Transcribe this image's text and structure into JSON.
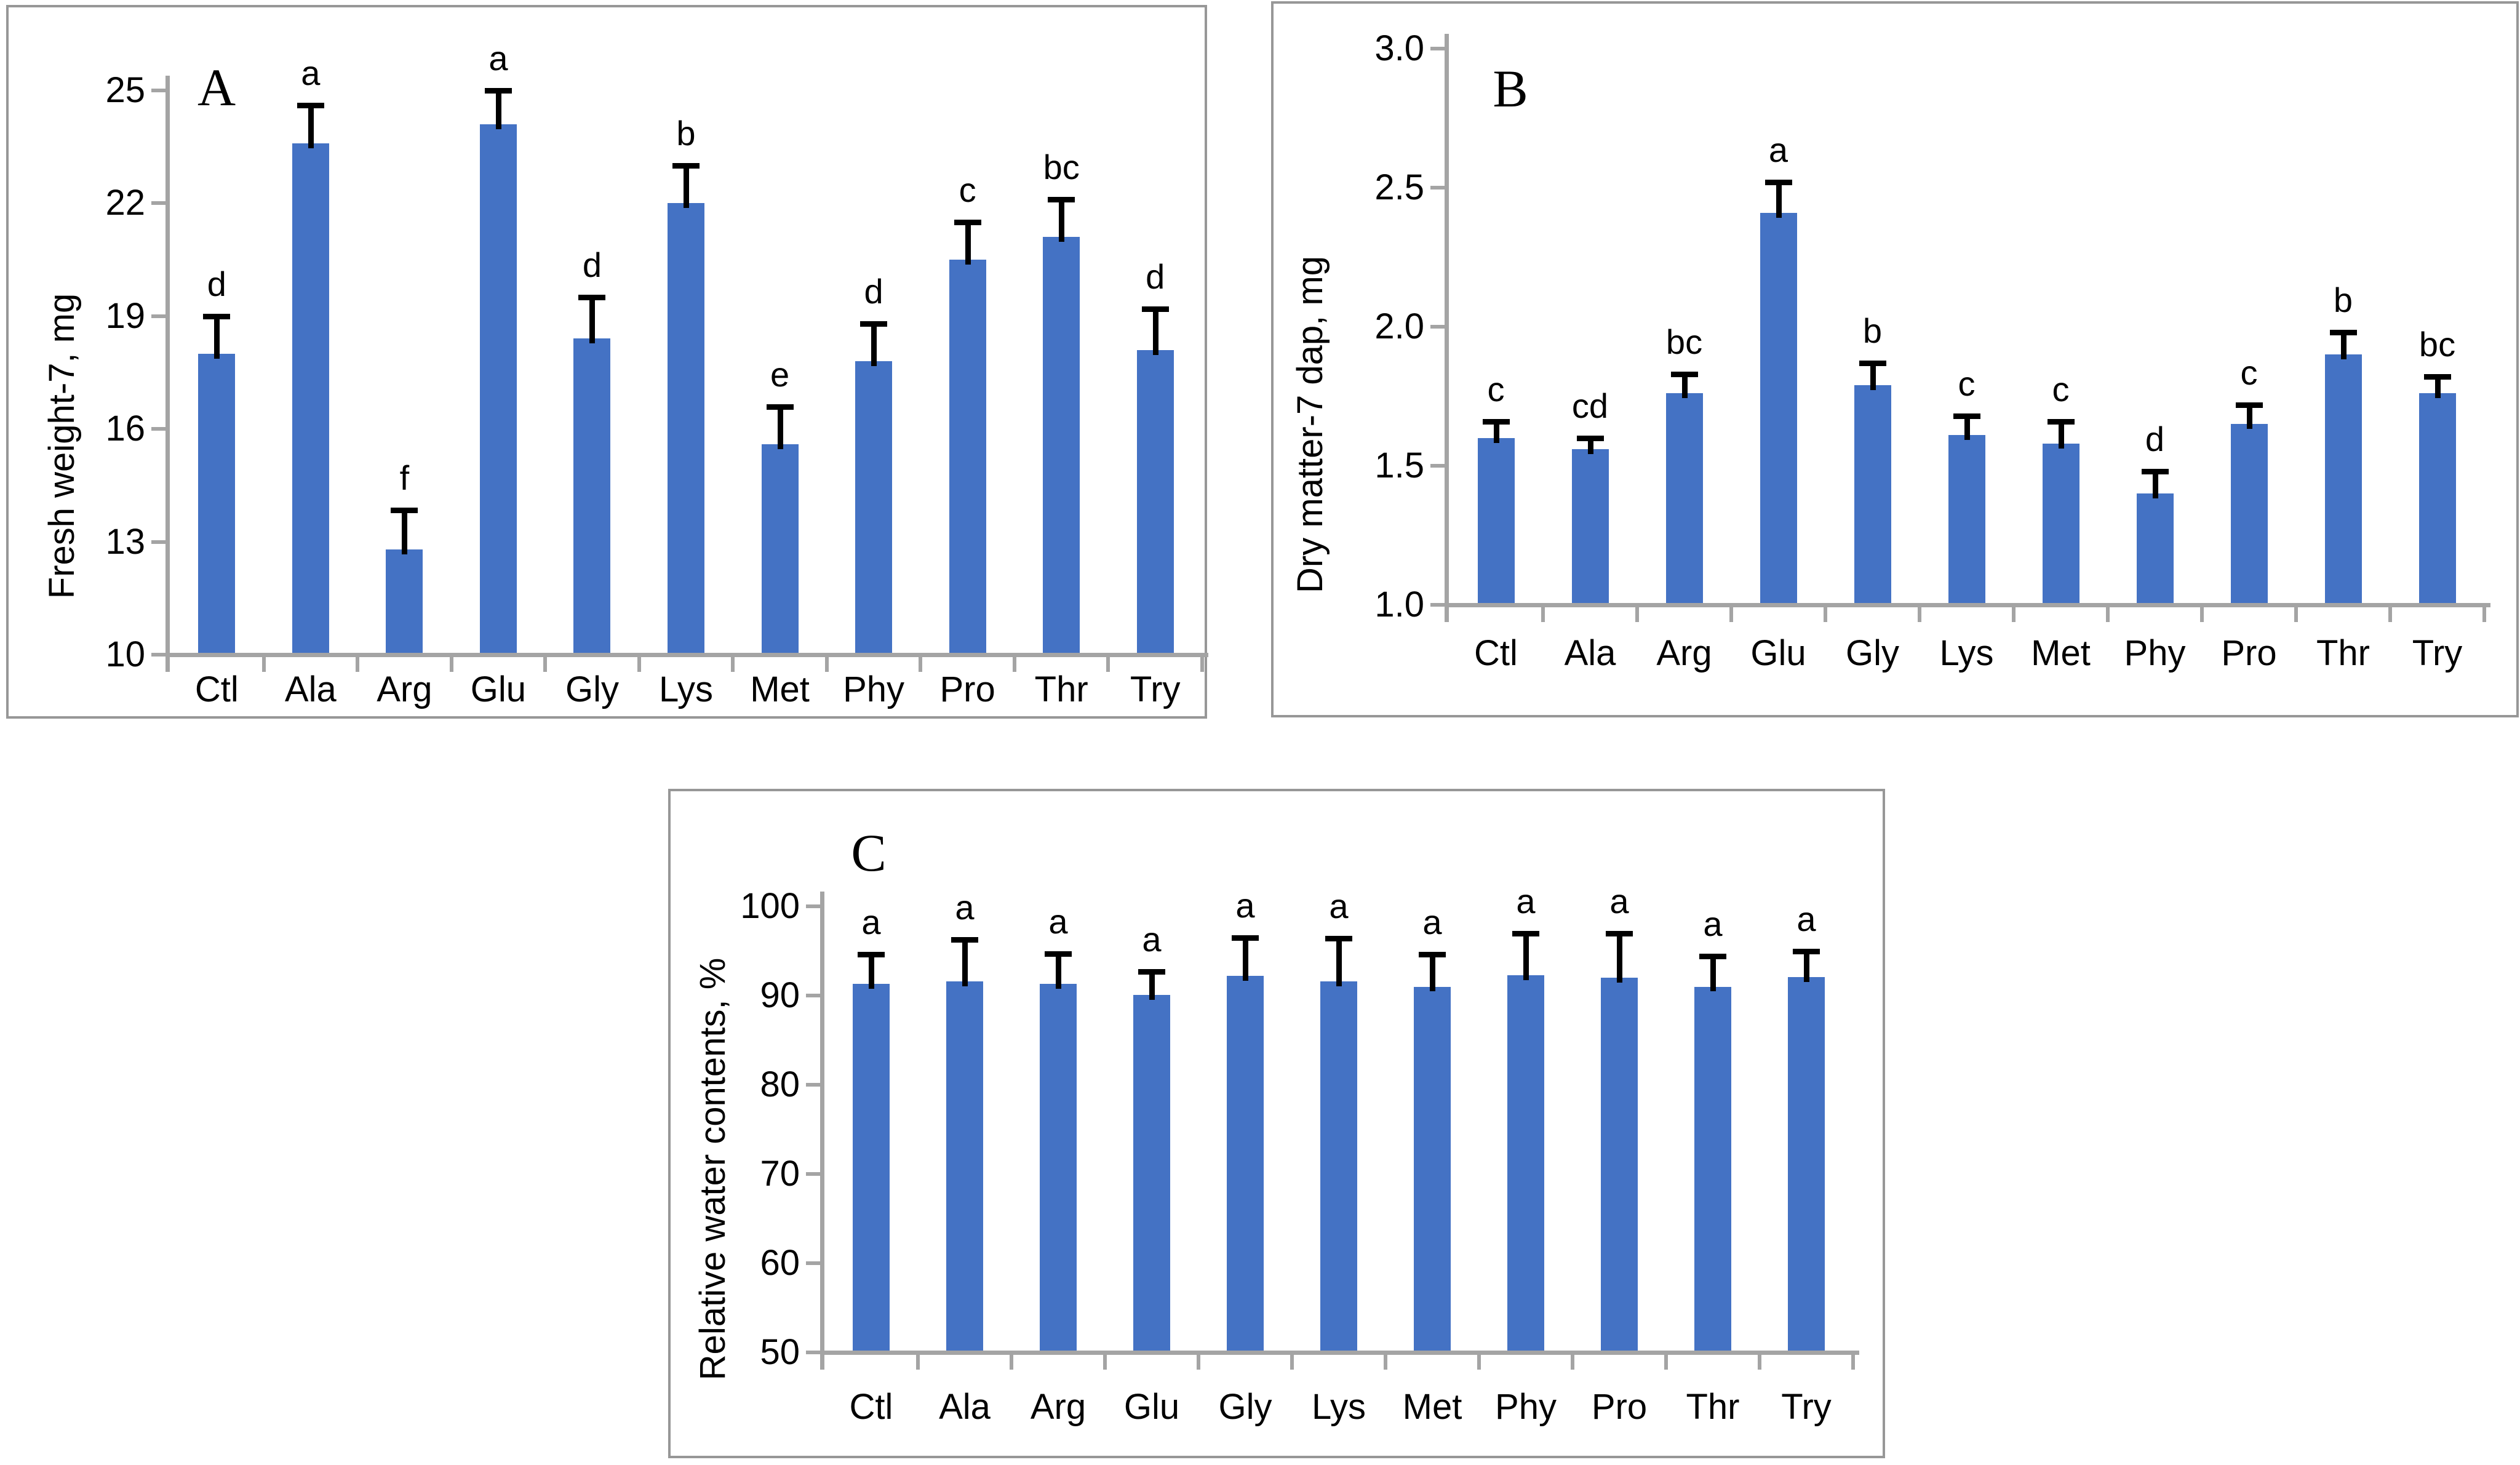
{
  "styles": {
    "bar_color": "#4472c4",
    "axis_color": "#a4a4a4",
    "panel_border_color": "#979797",
    "error_bar_color": "#000000",
    "text_color": "#000000"
  },
  "chart_data": [
    {
      "id": "a",
      "type": "bar",
      "panel_label": "A",
      "ylabel": "Fresh weight-7, mg",
      "categories": [
        "Ctl",
        "Ala",
        "Arg",
        "Glu",
        "Gly",
        "Lys",
        "Met",
        "Phy",
        "Pro",
        "Thr",
        "Try"
      ],
      "values": [
        18.0,
        23.6,
        12.8,
        24.1,
        18.4,
        22.0,
        15.6,
        17.8,
        20.5,
        21.1,
        18.1
      ],
      "errors_plus": [
        1.0,
        1.0,
        1.05,
        0.9,
        1.1,
        1.0,
        1.0,
        1.0,
        1.0,
        1.0,
        1.1
      ],
      "sig_letters": [
        "d",
        "a",
        "f",
        "a",
        "d",
        "b",
        "e",
        "d",
        "c",
        "bc",
        "d"
      ],
      "ylim": [
        10,
        25
      ],
      "yticks": [
        {
          "value": 25,
          "label": "25"
        },
        {
          "value": 22,
          "label": "22"
        },
        {
          "value": 19,
          "label": "19"
        },
        {
          "value": 16,
          "label": "16"
        },
        {
          "value": 13,
          "label": "13"
        },
        {
          "value": 10,
          "label": "10"
        }
      ],
      "grid": false,
      "legend": null
    },
    {
      "id": "b",
      "type": "bar",
      "panel_label": "B",
      "ylabel": "Dry matter-7 dap, mg",
      "categories": [
        "Ctl",
        "Ala",
        "Arg",
        "Glu",
        "Gly",
        "Lys",
        "Met",
        "Phy",
        "Pro",
        "Thr",
        "Try"
      ],
      "values": [
        1.6,
        1.56,
        1.76,
        2.41,
        1.79,
        1.61,
        1.58,
        1.4,
        1.65,
        1.9,
        1.76
      ],
      "errors_plus": [
        0.06,
        0.04,
        0.07,
        0.11,
        0.08,
        0.07,
        0.08,
        0.08,
        0.07,
        0.08,
        0.06
      ],
      "sig_letters": [
        "c",
        "cd",
        "bc",
        "a",
        "b",
        "c",
        "c",
        "d",
        "c",
        "b",
        "bc"
      ],
      "ylim": [
        1.0,
        3.0
      ],
      "yticks": [
        {
          "value": 3.0,
          "label": "3.0"
        },
        {
          "value": 2.5,
          "label": "2.5"
        },
        {
          "value": 2.0,
          "label": "2.0"
        },
        {
          "value": 1.5,
          "label": "1.5"
        },
        {
          "value": 1.0,
          "label": "1.0"
        }
      ],
      "grid": false,
      "legend": null
    },
    {
      "id": "c",
      "type": "bar",
      "panel_label": "C",
      "ylabel": "Relative water contents, %",
      "categories": [
        "Ctl",
        "Ala",
        "Arg",
        "Glu",
        "Gly",
        "Lys",
        "Met",
        "Phy",
        "Pro",
        "Thr",
        "Try"
      ],
      "values": [
        91.3,
        91.6,
        91.3,
        90.1,
        92.2,
        91.6,
        91.0,
        92.3,
        92.0,
        91.0,
        92.1
      ],
      "errors_plus": [
        3.3,
        4.7,
        3.4,
        2.6,
        4.3,
        4.8,
        3.6,
        4.7,
        5.0,
        3.4,
        2.9
      ],
      "sig_letters": [
        "a",
        "a",
        "a",
        "a",
        "a",
        "a",
        "a",
        "a",
        "a",
        "a",
        "a"
      ],
      "ylim": [
        50,
        100
      ],
      "yticks": [
        {
          "value": 100,
          "label": "100"
        },
        {
          "value": 90,
          "label": "90"
        },
        {
          "value": 80,
          "label": "80"
        },
        {
          "value": 70,
          "label": "70"
        },
        {
          "value": 60,
          "label": "60"
        },
        {
          "value": 50,
          "label": "50"
        }
      ],
      "grid": false,
      "legend": null
    }
  ]
}
